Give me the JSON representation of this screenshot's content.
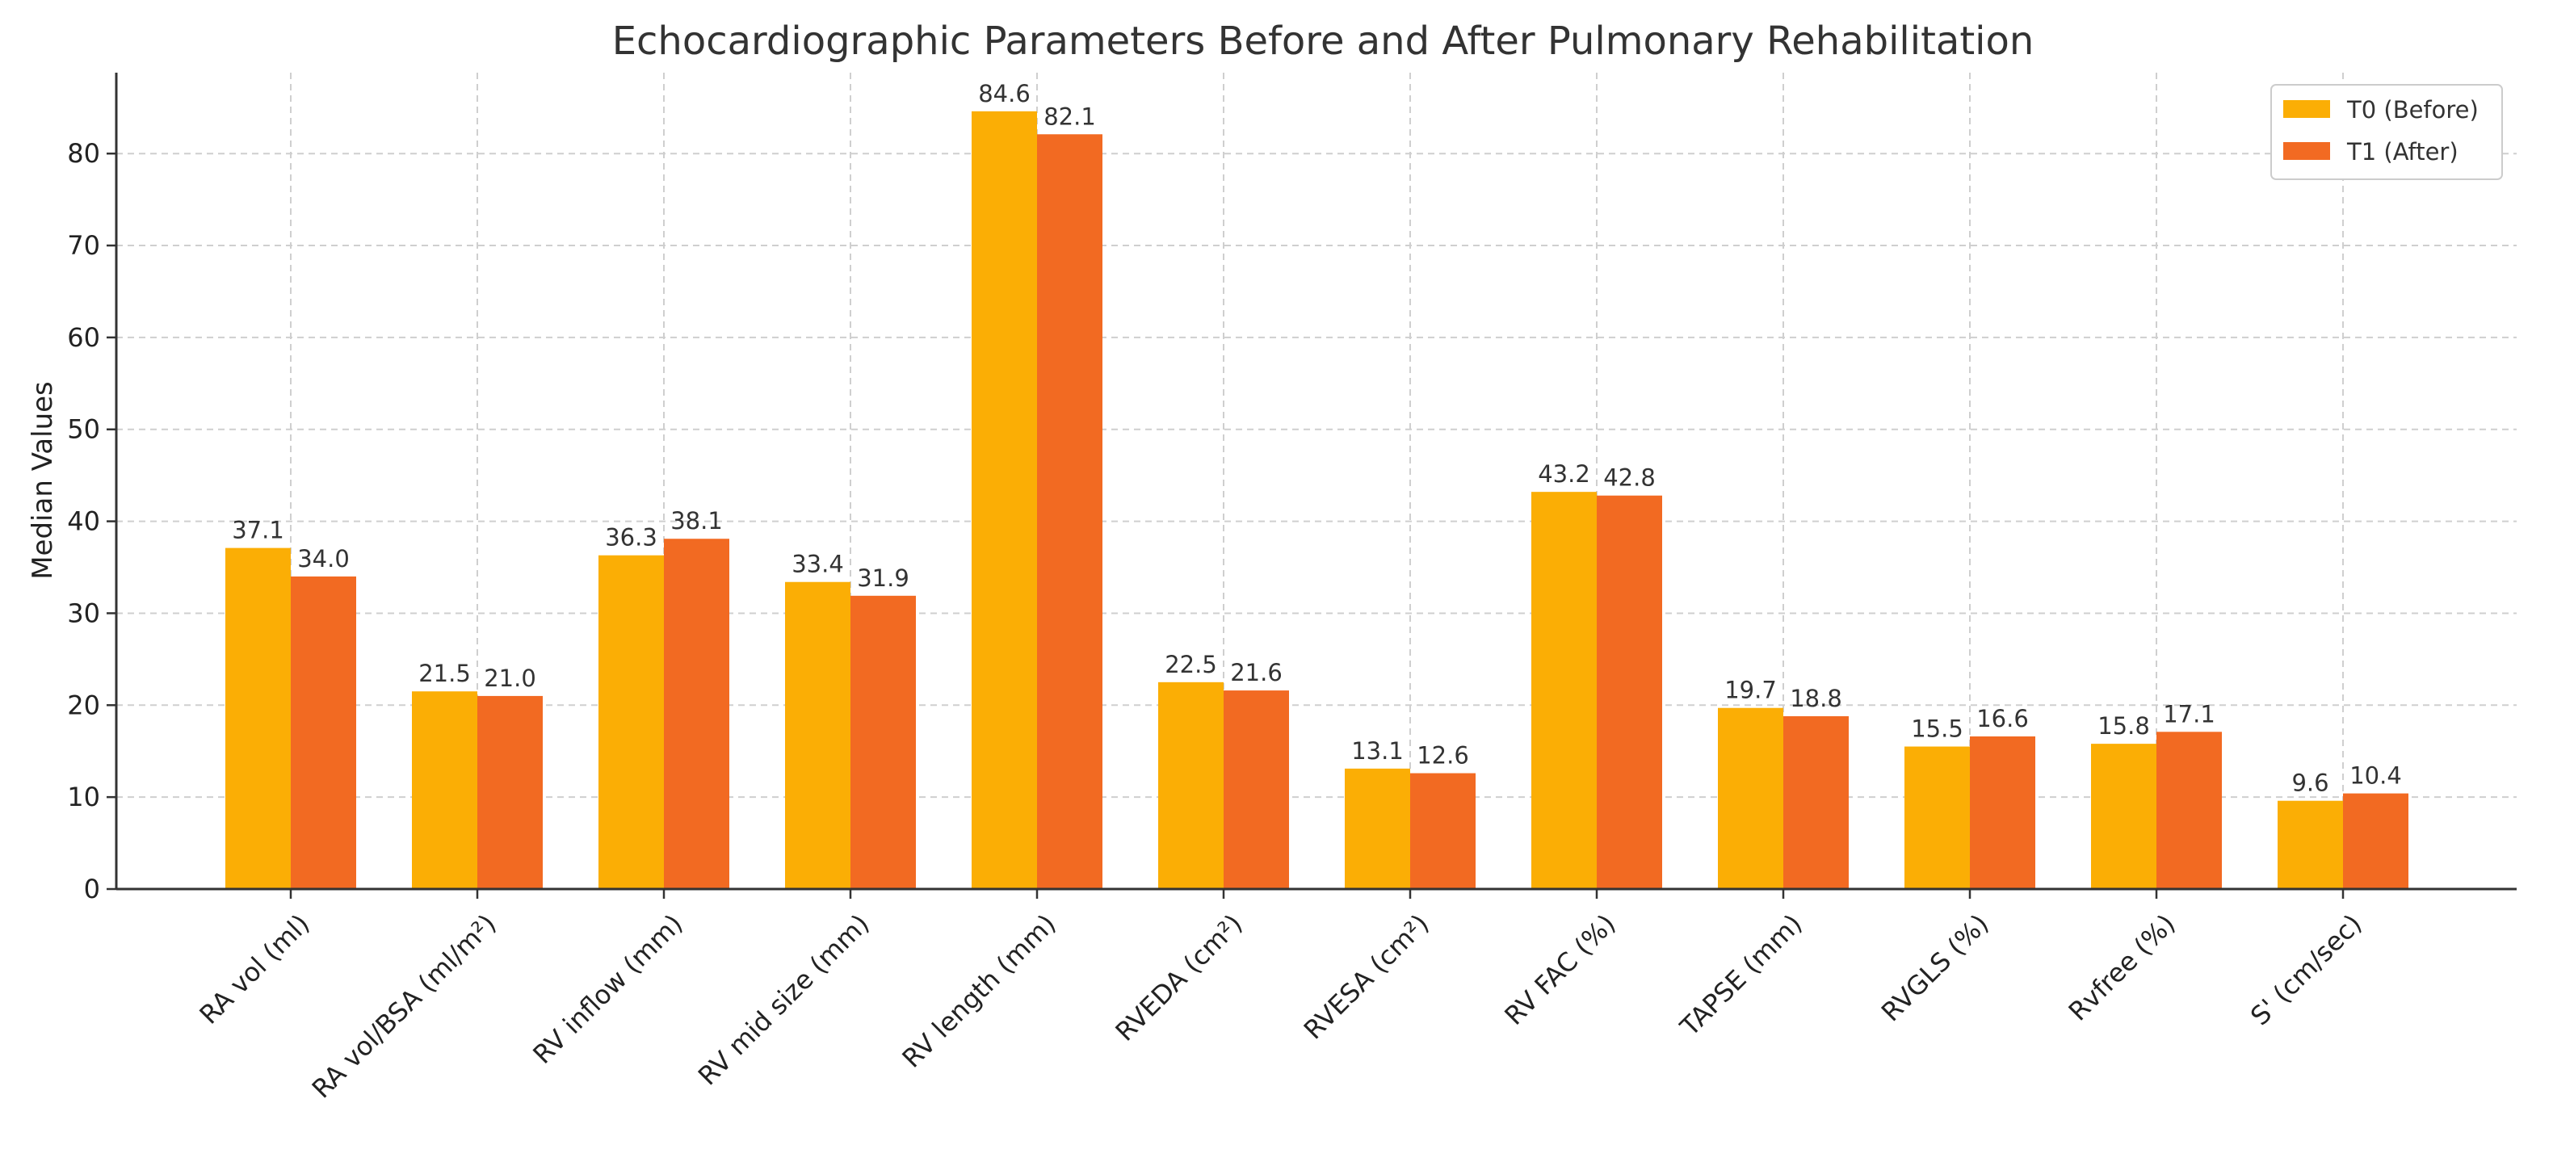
{
  "colors": {
    "t0": "#FBAE05",
    "t1": "#F26A22"
  },
  "chart_data": {
    "type": "bar",
    "title": "Echocardiographic Parameters Before and After Pulmonary Rehabilitation",
    "xlabel": "",
    "ylabel": "Median Values",
    "ylim": [
      0,
      88.8
    ],
    "yticks": [
      "0",
      "10",
      "20",
      "30",
      "40",
      "50",
      "60",
      "70",
      "80"
    ],
    "grid": true,
    "legend_position": "top-right",
    "categories": [
      "RA vol (ml)",
      "RA vol/BSA (ml/m²)",
      "RV inflow (mm)",
      "RV mid size (mm)",
      "RV length (mm)",
      "RVEDA (cm²)",
      "RVESA (cm²)",
      "RV FAC (%)",
      "TAPSE (mm)",
      "RVGLS (%)",
      "Rvfree (%)",
      "S' (cm/sec)"
    ],
    "series": [
      {
        "name": "T0 (Before)",
        "values": [
          37.1,
          21.5,
          36.3,
          33.4,
          84.6,
          22.5,
          13.1,
          43.2,
          19.7,
          15.5,
          15.8,
          9.6
        ],
        "labels": [
          "37.1",
          "21.5",
          "36.3",
          "33.4",
          "84.6",
          "22.5",
          "13.1",
          "43.2",
          "19.7",
          "15.5",
          "15.8",
          "9.6"
        ]
      },
      {
        "name": "T1 (After)",
        "values": [
          34.0,
          21.0,
          38.1,
          31.9,
          82.1,
          21.6,
          12.6,
          42.8,
          18.8,
          16.6,
          17.1,
          10.4
        ],
        "labels": [
          "34.0",
          "21.0",
          "38.1",
          "31.9",
          "82.1",
          "21.6",
          "12.6",
          "42.8",
          "18.8",
          "16.6",
          "17.1",
          "10.4"
        ]
      }
    ]
  }
}
